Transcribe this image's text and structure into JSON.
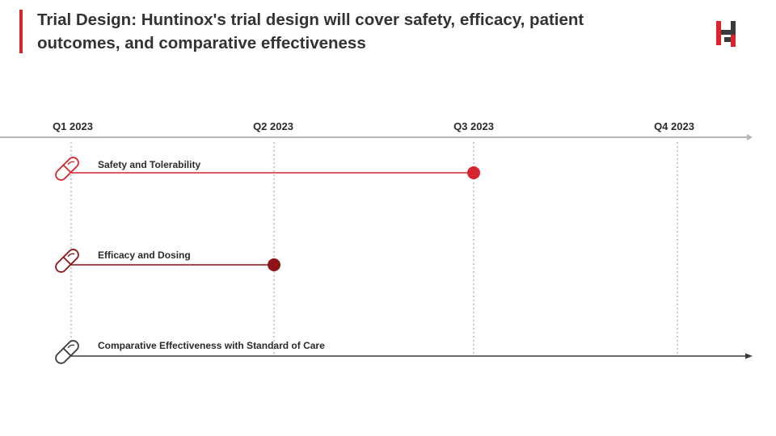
{
  "header": {
    "title": "Trial Design: Huntinox's trial design will cover safety, efficacy, patient outcomes, and comparative effectiveness",
    "accent_color": "#d7262e"
  },
  "logo": {
    "icon": "hx-brand-logo",
    "colors": [
      "#d7262e",
      "#3a3a3a"
    ]
  },
  "timeline": {
    "axis_color": "#b7b7b7",
    "quarters": [
      {
        "label": "Q1 2023"
      },
      {
        "label": "Q2 2023"
      },
      {
        "label": "Q3 2023"
      },
      {
        "label": "Q4 2023"
      }
    ],
    "workstreams": [
      {
        "label": "Safety and Tolerability",
        "start_quarter": 0,
        "end_quarter": 2,
        "end_marker": "dot",
        "color": "#d7262e",
        "icon": "pill-icon"
      },
      {
        "label": "Efficacy and Dosing",
        "start_quarter": 0,
        "end_quarter": 1,
        "end_marker": "dot",
        "color": "#8e1418",
        "icon": "pill-icon"
      },
      {
        "label": "Comparative Effectiveness with Standard of Care",
        "start_quarter": 0,
        "end_quarter": 3.4,
        "end_marker": "arrow",
        "color": "#3a3a3a",
        "icon": "pill-icon"
      }
    ]
  }
}
